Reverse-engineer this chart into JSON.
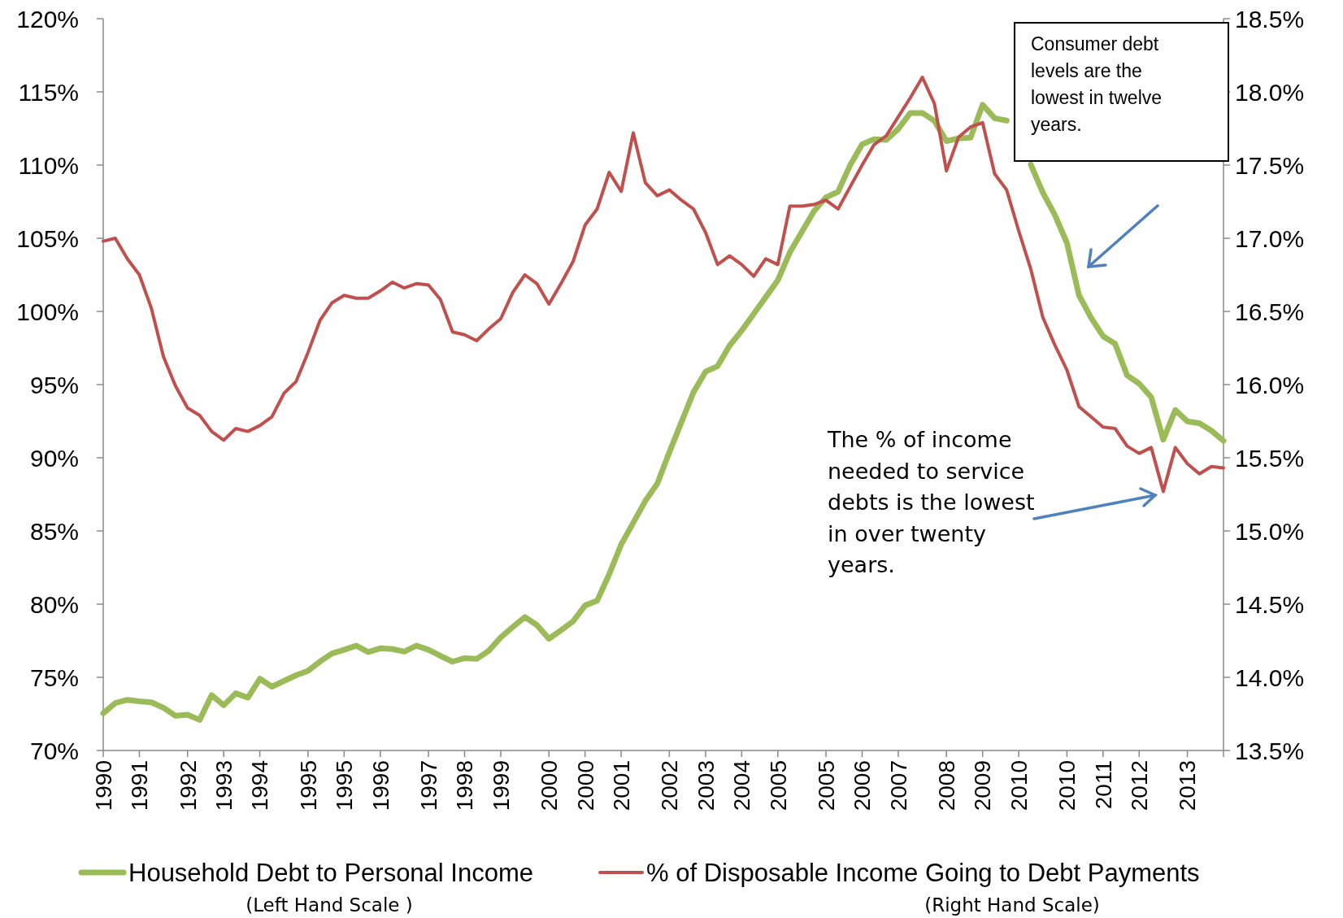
{
  "chart_data": {
    "type": "line",
    "legend": "bottom",
    "categories": [
      "1990",
      null,
      null,
      "1991",
      null,
      null,
      null,
      "1992",
      null,
      null,
      "1993",
      null,
      null,
      "1994",
      null,
      null,
      null,
      "1995",
      null,
      null,
      "1995",
      null,
      null,
      "1996",
      null,
      null,
      null,
      "1997",
      null,
      null,
      "1998",
      null,
      null,
      "1999",
      null,
      null,
      null,
      "2000",
      null,
      null,
      "2000",
      null,
      null,
      "2001",
      null,
      null,
      null,
      "2002",
      null,
      null,
      "2003",
      null,
      null,
      "2004",
      null,
      null,
      "2005",
      null,
      null,
      null,
      "2005",
      null,
      null,
      "2006",
      null,
      null,
      "2007",
      null,
      null,
      null,
      "2008",
      null,
      null,
      "2009",
      null,
      null,
      "2010",
      null,
      null,
      null,
      "2010",
      null,
      null,
      "2011",
      null,
      null,
      "2012",
      null,
      null,
      null,
      "2013",
      null,
      null,
      null
    ],
    "ylim": [
      70,
      120
    ],
    "yticks": [
      {
        "value": 70,
        "label": "70%"
      },
      {
        "value": 75,
        "label": "75%"
      },
      {
        "value": 80,
        "label": "80%"
      },
      {
        "value": 85,
        "label": "85%"
      },
      {
        "value": 90,
        "label": "90%"
      },
      {
        "value": 95,
        "label": "95%"
      },
      {
        "value": 100,
        "label": "100%"
      },
      {
        "value": 105,
        "label": "105%"
      },
      {
        "value": 110,
        "label": "110%"
      },
      {
        "value": 115,
        "label": "115%"
      },
      {
        "value": 120,
        "label": "120%"
      }
    ],
    "y2lim": [
      13.5,
      18.5
    ],
    "y2ticks": [
      {
        "value": 13.5,
        "label": "13.5%"
      },
      {
        "value": 14,
        "label": "14.0%"
      },
      {
        "value": 14.5,
        "label": "14.5%"
      },
      {
        "value": 15,
        "label": "15.0%"
      },
      {
        "value": 15.5,
        "label": "15.5%"
      },
      {
        "value": 16,
        "label": "16.0%"
      },
      {
        "value": 16.5,
        "label": "16.5%"
      },
      {
        "value": 17,
        "label": "17.0%"
      },
      {
        "value": 17.5,
        "label": "17.5%"
      },
      {
        "value": 18,
        "label": "18.0%"
      },
      {
        "value": 18.5,
        "label": "18.5%"
      }
    ],
    "series": [
      {
        "name": "Household Debt to Personal Income",
        "color": "#9bbb59",
        "values": [
          72.54,
          73.24,
          73.46,
          73.36,
          73.29,
          72.92,
          72.37,
          72.44,
          72.09,
          73.78,
          73.09,
          73.91,
          73.61,
          74.9,
          74.36,
          74.75,
          75.14,
          75.44,
          76.09,
          76.63,
          76.88,
          77.16,
          76.73,
          76.98,
          76.93,
          76.76,
          77.16,
          76.88,
          76.46,
          76.07,
          76.31,
          76.26,
          76.81,
          77.73,
          78.44,
          79.12,
          78.57,
          77.63,
          78.22,
          78.82,
          79.91,
          80.23,
          82.04,
          84.08,
          85.56,
          87.05,
          88.23,
          90.39,
          92.44,
          94.48,
          95.88,
          96.26,
          97.67,
          98.69,
          99.83,
          100.98,
          102.13,
          104.04,
          105.44,
          106.85,
          107.79,
          108.18,
          109.98,
          111.42,
          111.77,
          111.72,
          112.46,
          113.56,
          113.56,
          113.02,
          111.64,
          111.82,
          111.87,
          114.12,
          113.2,
          113.04,
          null,
          110.04,
          108.12,
          106.59,
          104.68,
          101.11,
          99.58,
          98.31,
          97.79,
          95.63,
          95.07,
          94.14,
          91.24,
          93.26,
          92.49,
          92.36,
          91.85,
          91.16
        ]
      },
      {
        "name": "% of Disposable Income Going to Debt Payments",
        "color": "#c0504d",
        "axis": "y2",
        "values": [
          16.98,
          17.0,
          16.86,
          16.75,
          16.52,
          16.19,
          15.99,
          15.84,
          15.79,
          15.68,
          15.62,
          15.7,
          15.68,
          15.72,
          15.78,
          15.94,
          16.02,
          16.22,
          16.44,
          16.56,
          16.61,
          16.59,
          16.59,
          16.64,
          16.7,
          16.66,
          16.69,
          16.68,
          16.58,
          16.36,
          16.34,
          16.3,
          16.38,
          16.45,
          16.63,
          16.75,
          16.69,
          16.55,
          16.69,
          16.84,
          17.09,
          17.2,
          17.45,
          17.32,
          17.72,
          17.38,
          17.29,
          17.33,
          17.26,
          17.2,
          17.04,
          16.82,
          16.88,
          16.82,
          16.74,
          16.86,
          16.82,
          17.22,
          17.22,
          17.23,
          17.26,
          17.2,
          17.35,
          17.5,
          17.64,
          17.7,
          17.83,
          17.96,
          18.1,
          17.92,
          17.46,
          17.69,
          17.76,
          17.79,
          17.44,
          17.33,
          17.05,
          16.79,
          16.46,
          16.27,
          16.1,
          15.85,
          15.78,
          15.71,
          15.7,
          15.58,
          15.53,
          15.57,
          15.27,
          15.57,
          15.46,
          15.39,
          15.44,
          15.43
        ]
      }
    ],
    "annotations": [
      "Consumer debt levels are the lowest in twelve years.",
      "The % of income needed to service debts is the lowest in over twenty years.",
      "(Left Hand Scale )",
      "(Right Hand Scale)"
    ]
  }
}
